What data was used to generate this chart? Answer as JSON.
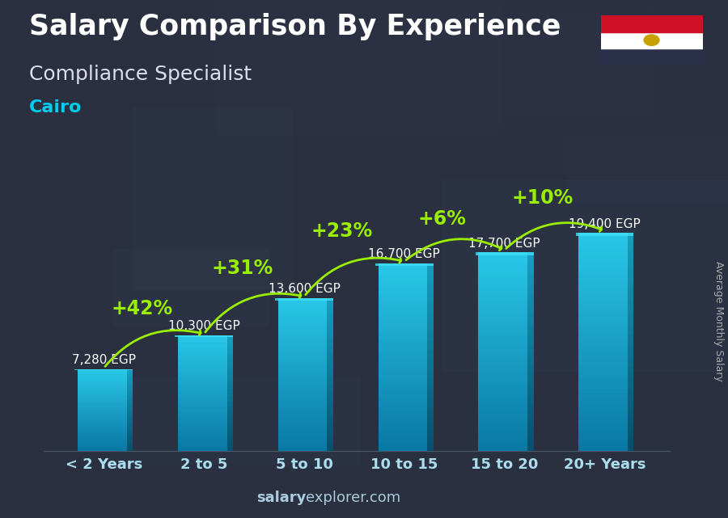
{
  "title": "Salary Comparison By Experience",
  "subtitle": "Compliance Specialist",
  "city": "Cairo",
  "ylabel_rotated": "Average Monthly Salary",
  "watermark_bold": "salary",
  "watermark_normal": "explorer.com",
  "categories": [
    "< 2 Years",
    "2 to 5",
    "5 to 10",
    "10 to 15",
    "15 to 20",
    "20+ Years"
  ],
  "values": [
    7280,
    10300,
    13600,
    16700,
    17700,
    19400
  ],
  "value_labels": [
    "7,280 EGP",
    "10,300 EGP",
    "13,600 EGP",
    "16,700 EGP",
    "17,700 EGP",
    "19,400 EGP"
  ],
  "pct_changes": [
    "+42%",
    "+31%",
    "+23%",
    "+6%",
    "+10%"
  ],
  "bar_color_main": "#29c8e8",
  "bar_color_light": "#5dddf5",
  "bar_color_dark": "#1490b0",
  "bar_side_color": "#1aa0c0",
  "bg_color": "#2a3040",
  "overlay_color": "#1e2535",
  "title_color": "#ffffff",
  "subtitle_color": "#ddddee",
  "city_color": "#00ccee",
  "val_label_color": "#ffffff",
  "pct_color": "#99ee00",
  "xtick_color": "#aaddee",
  "watermark_color": "#aaccdd",
  "ylabel_color": "#aaaaaa",
  "flag_red": "#CE1126",
  "flag_white": "#FFFFFF",
  "flag_navy": "#2a2f4a",
  "flag_eagle": "#C8A000",
  "ylim": [
    0,
    24000
  ],
  "title_fontsize": 25,
  "subtitle_fontsize": 18,
  "city_fontsize": 16,
  "bar_label_fontsize": 11,
  "pct_fontsize": 17,
  "xtick_fontsize": 13,
  "watermark_fontsize": 13,
  "ylabel_fontsize": 9
}
